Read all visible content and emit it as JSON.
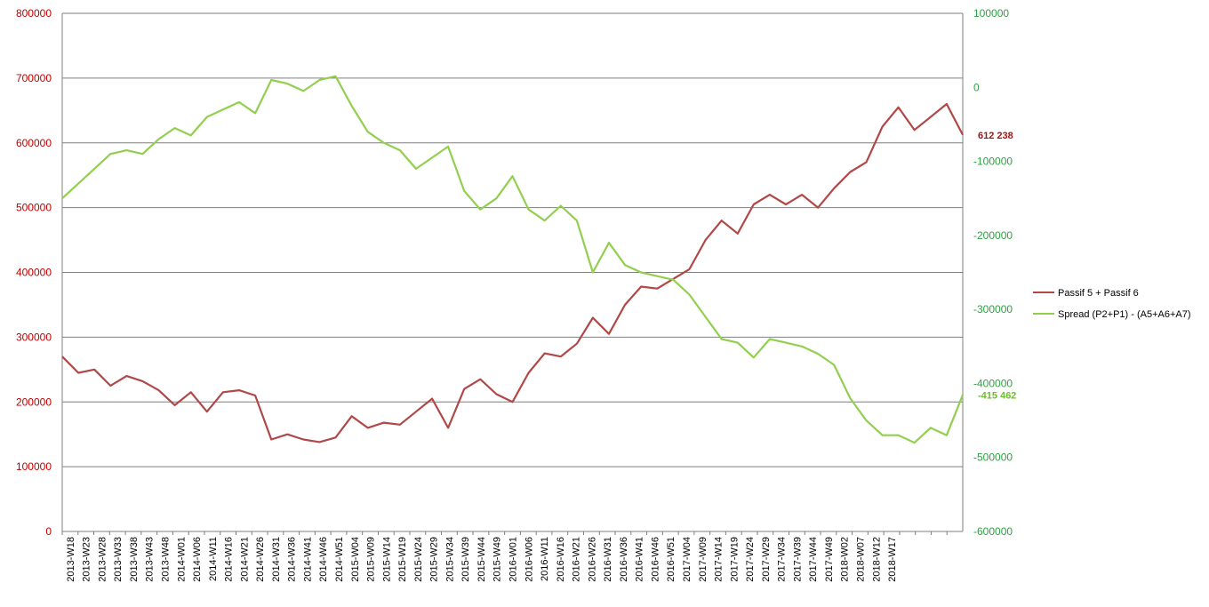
{
  "chart_data": {
    "type": "line",
    "title": "",
    "colors": {
      "left_axis": "#c00000",
      "right_axis": "#2ea043",
      "series1": "#b04848",
      "series2": "#92cf4f",
      "grid": "#7f7f7f"
    },
    "x": [
      "2013-W18",
      "2013-W23",
      "2013-W28",
      "2013-W33",
      "2013-W38",
      "2013-W43",
      "2013-W48",
      "2014-W01",
      "2014-W06",
      "2014-W11",
      "2014-W16",
      "2014-W21",
      "2014-W26",
      "2014-W31",
      "2014-W36",
      "2014-W41",
      "2014-W46",
      "2014-W51",
      "2015-W04",
      "2015-W09",
      "2015-W14",
      "2015-W19",
      "2015-W24",
      "2015-W29",
      "2015-W34",
      "2015-W39",
      "2015-W44",
      "2015-W49",
      "2016-W01",
      "2016-W06",
      "2016-W11",
      "2016-W16",
      "2016-W21",
      "2016-W26",
      "2016-W31",
      "2016-W36",
      "2016-W41",
      "2016-W46",
      "2016-W51",
      "2017-W04",
      "2017-W09",
      "2017-W14",
      "2017-W19",
      "2017-W24",
      "2017-W29",
      "2017-W34",
      "2017-W39",
      "2017-W44",
      "2017-W49",
      "2018-W02",
      "2018-W07",
      "2018-W12",
      "2018-W17",
      "",
      "",
      "",
      ""
    ],
    "y_left": {
      "min": 0,
      "max": 800000,
      "ticks": [
        "0",
        "100000",
        "200000",
        "300000",
        "400000",
        "500000",
        "600000",
        "700000",
        "800000"
      ]
    },
    "y_right": {
      "min": -600000,
      "max": 100000,
      "ticks": [
        "-600000",
        "-500000",
        "-400000",
        "-300000",
        "-200000",
        "-100000",
        "0",
        "100000"
      ]
    },
    "grid": true,
    "legend_position": "right",
    "series": [
      {
        "name": "Passif 5 + Passif 6",
        "axis": "left",
        "last_label": "612 238",
        "values": [
          270000,
          245000,
          250000,
          225000,
          240000,
          232000,
          218000,
          195000,
          215000,
          185000,
          215000,
          218000,
          210000,
          142000,
          150000,
          142000,
          138000,
          145000,
          178000,
          160000,
          168000,
          165000,
          185000,
          205000,
          160000,
          220000,
          235000,
          212000,
          200000,
          245000,
          275000,
          270000,
          290000,
          330000,
          305000,
          350000,
          378000,
          375000,
          390000,
          405000,
          450000,
          480000,
          460000,
          505000,
          520000,
          505000,
          520000,
          500000,
          530000,
          555000,
          570000,
          625000,
          655000,
          620000,
          640000,
          660000,
          612238
        ]
      },
      {
        "name": "Spread (P2+P1) - (A5+A6+A7)",
        "axis": "right",
        "last_label": "-415 462",
        "values": [
          -150000,
          -130000,
          -110000,
          -90000,
          -85000,
          -90000,
          -70000,
          -55000,
          -65000,
          -40000,
          -30000,
          -20000,
          -35000,
          10000,
          5000,
          -5000,
          10000,
          15000,
          -25000,
          -60000,
          -75000,
          -85000,
          -110000,
          -95000,
          -80000,
          -140000,
          -165000,
          -150000,
          -120000,
          -165000,
          -180000,
          -160000,
          -180000,
          -250000,
          -210000,
          -240000,
          -250000,
          -255000,
          -260000,
          -280000,
          -310000,
          -340000,
          -345000,
          -365000,
          -340000,
          -345000,
          -350000,
          -360000,
          -375000,
          -420000,
          -450000,
          -470000,
          -470000,
          -480000,
          -460000,
          -470000,
          -415462
        ]
      }
    ]
  }
}
